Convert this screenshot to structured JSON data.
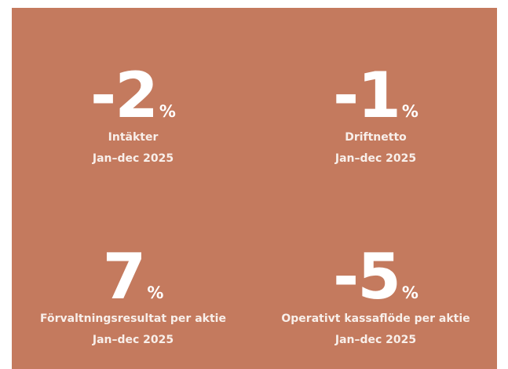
{
  "kpis": [
    {
      "value": "-2",
      "unit": "%",
      "label": "Intäkter",
      "period": "Jan–dec 2025"
    },
    {
      "value": "-1",
      "unit": "%",
      "label": "Driftnetto",
      "period": "Jan–dec 2025"
    },
    {
      "value": "7",
      "unit": "%",
      "label": "Förvaltningsresultat per aktie",
      "period": "Jan–dec 2025"
    },
    {
      "value": "-5",
      "unit": "%",
      "label": "Operativt kassaflöde per aktie",
      "period": "Jan–dec 2025"
    }
  ]
}
